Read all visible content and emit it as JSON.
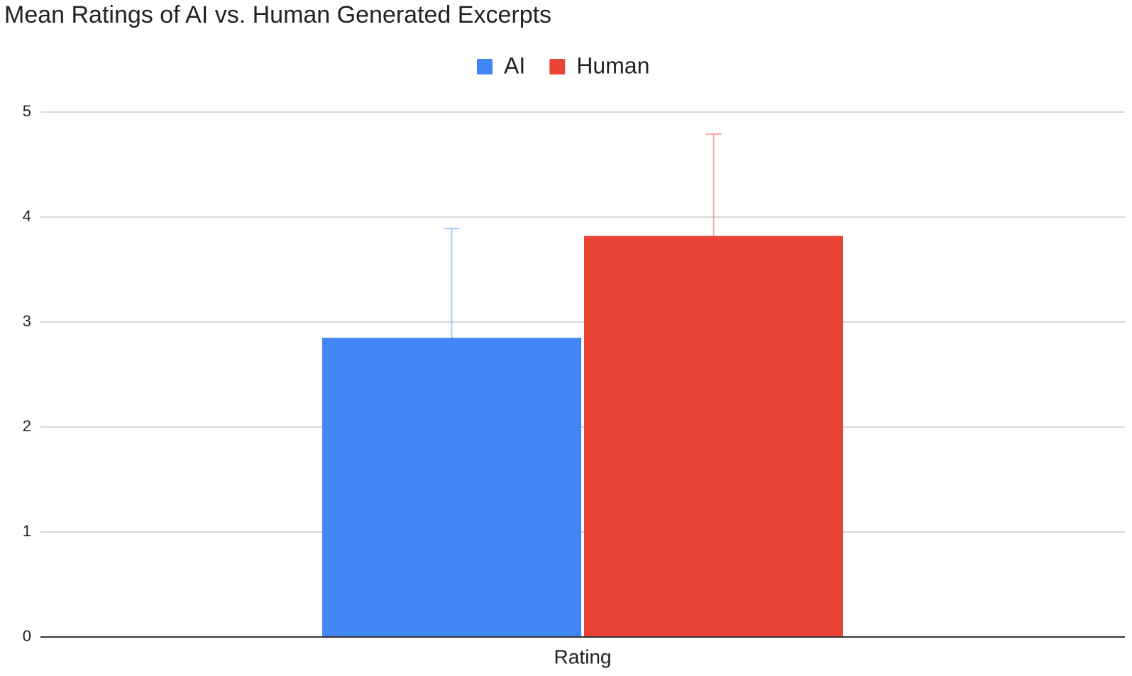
{
  "chart_data": {
    "type": "bar",
    "title": "Mean Ratings of AI vs. Human Generated Excerpts",
    "categories": [
      "Rating"
    ],
    "series": [
      {
        "name": "AI",
        "color": "#4285f4",
        "values": [
          2.85
        ],
        "errors": [
          1.04
        ]
      },
      {
        "name": "Human",
        "color": "#ea4335",
        "values": [
          3.82
        ],
        "errors": [
          0.97
        ]
      }
    ],
    "ylim": [
      0,
      5
    ],
    "yticks": [
      0,
      1,
      2,
      3,
      4,
      5
    ],
    "grid": true,
    "legend": "top"
  }
}
